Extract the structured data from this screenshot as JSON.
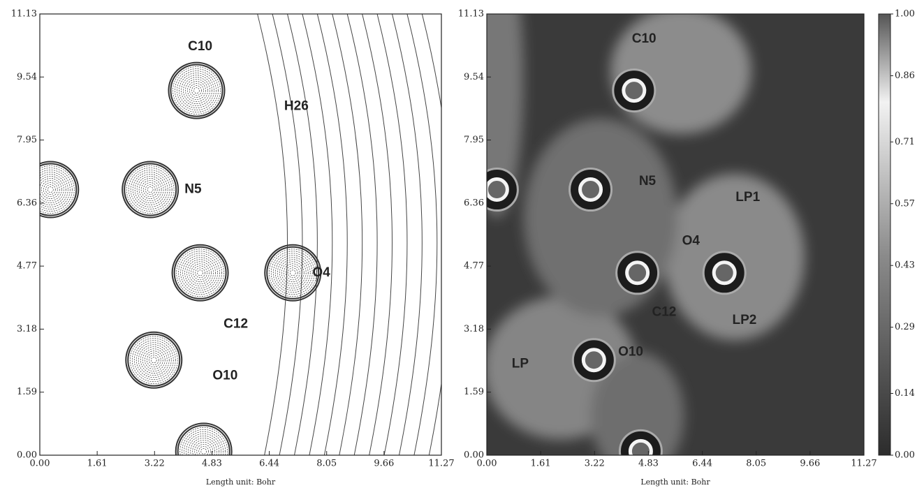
{
  "chart_data": [
    {
      "type": "contour",
      "xlabel": "Length unit: Bohr",
      "xlim": [
        0,
        11.27
      ],
      "ylim": [
        0,
        11.13
      ],
      "xticks": [
        {
          "value": 0,
          "label": "0.00"
        },
        1.61,
        3.22,
        4.83,
        6.44,
        8.05,
        9.66,
        11.27
      ],
      "yticks": [
        {
          "value": 0,
          "label": "0.00"
        },
        1.59,
        3.18,
        4.77,
        6.36,
        7.95,
        9.54,
        11.13
      ],
      "annotations": [
        "C10",
        "H26",
        "N5",
        "O4",
        "C12",
        "O10"
      ]
    },
    {
      "type": "heatmap",
      "xlabel": "Length unit: Bohr",
      "xlim": [
        0,
        11.27
      ],
      "ylim": [
        0,
        11.13
      ],
      "xticks": [
        {
          "value": 0,
          "label": "0.00"
        },
        1.61,
        3.22,
        4.83,
        6.44,
        8.05,
        9.66,
        11.27
      ],
      "yticks": [
        {
          "value": 0,
          "label": "0.00"
        },
        1.59,
        3.18,
        4.77,
        6.36,
        7.95,
        9.54,
        11.13
      ],
      "clim": [
        0,
        1
      ],
      "cticks": [
        {
          "value": 0,
          "label": "0.00"
        },
        0.14,
        0.29,
        0.43,
        0.57,
        0.71,
        0.86,
        {
          "value": 1,
          "label": "1.00"
        }
      ],
      "annotations": [
        "C10",
        "N5",
        "O4",
        "C12",
        "O10",
        "LP",
        "LP1",
        "LP2"
      ]
    }
  ]
}
